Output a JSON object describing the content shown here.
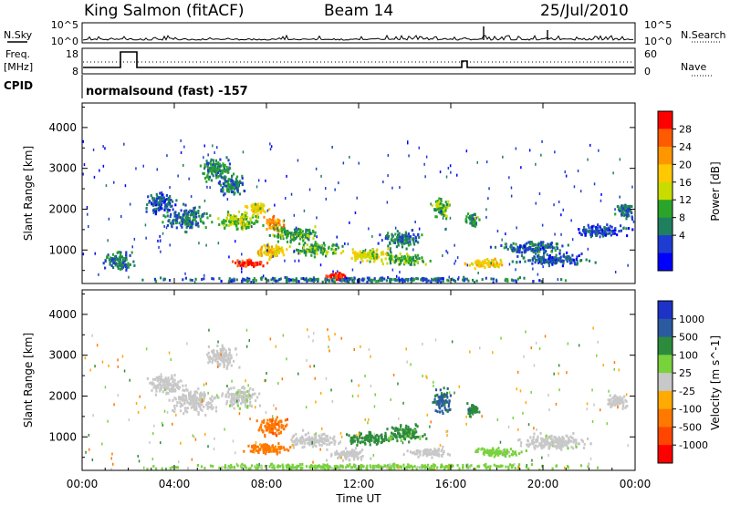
{
  "header": {
    "station": "King Salmon (fitACF)",
    "beam": "Beam 14",
    "date": "25/Jul/2010"
  },
  "top_panels": {
    "nsky_label": "N.Sky",
    "nsearch_label": "N.Search",
    "freq_label": "Freq.",
    "freq_unit": "[MHz]",
    "nave_label": "Nave",
    "cpid_label": "CPID",
    "cpid_text": "normalsound (fast) -157",
    "noise_ticks_left": [
      "10^5",
      "10^0"
    ],
    "noise_ticks_right": [
      "10^5",
      "10^0"
    ],
    "freq_ticks": [
      "18",
      "8"
    ],
    "nave_ticks": [
      "60",
      "0"
    ]
  },
  "power_colorbar": {
    "label": "Power [dB]",
    "ticks": [
      "28",
      "24",
      "20",
      "16",
      "12",
      "8",
      "4"
    ],
    "colors": [
      "#ff0000",
      "#ff5a00",
      "#ff9600",
      "#ffc800",
      "#c8dc00",
      "#2aa52a",
      "#1f8060",
      "#1e3cd2",
      "#0000ff"
    ]
  },
  "velocity_colorbar": {
    "label": "Velocity [m s^-1]",
    "ticks": [
      "1000",
      "500",
      "100",
      "25",
      "-25",
      "-100",
      "-500",
      "-1000"
    ],
    "colors": [
      "#1e32c8",
      "#2a5aa0",
      "#2d8c3c",
      "#78d23c",
      "#c8c8c8",
      "#ffaa00",
      "#ff7800",
      "#ff4600",
      "#ff0000"
    ]
  },
  "chart_data": [
    {
      "type": "heatmap",
      "name": "power",
      "ylabel": "Slant Range [km]",
      "yticks": [
        1000,
        2000,
        3000,
        4000
      ],
      "ylim": [
        180,
        4600
      ],
      "xlim": [
        0,
        24
      ],
      "clim": [
        0,
        30
      ],
      "blobs": [
        {
          "t": 1.6,
          "r": 750,
          "dt": 0.9,
          "dr": 300,
          "v": 8
        },
        {
          "t": 3.4,
          "r": 2200,
          "dt": 0.8,
          "dr": 350,
          "v": 6
        },
        {
          "t": 4.5,
          "r": 1800,
          "dt": 1.2,
          "dr": 400,
          "v": 8
        },
        {
          "t": 5.8,
          "r": 3000,
          "dt": 0.9,
          "dr": 350,
          "v": 9
        },
        {
          "t": 6.5,
          "r": 2600,
          "dt": 0.8,
          "dr": 300,
          "v": 8
        },
        {
          "t": 6.8,
          "r": 1750,
          "dt": 1.2,
          "dr": 300,
          "v": 14
        },
        {
          "t": 7.6,
          "r": 2050,
          "dt": 0.6,
          "dr": 200,
          "v": 17
        },
        {
          "t": 8.3,
          "r": 1650,
          "dt": 0.6,
          "dr": 250,
          "v": 22
        },
        {
          "t": 8.2,
          "r": 1000,
          "dt": 1.0,
          "dr": 220,
          "v": 18
        },
        {
          "t": 7.2,
          "r": 700,
          "dt": 1.0,
          "dr": 120,
          "v": 27
        },
        {
          "t": 9.2,
          "r": 1400,
          "dt": 1.4,
          "dr": 250,
          "v": 11
        },
        {
          "t": 10.2,
          "r": 1050,
          "dt": 1.4,
          "dr": 200,
          "v": 11
        },
        {
          "t": 11.0,
          "r": 380,
          "dt": 0.8,
          "dr": 120,
          "v": 28
        },
        {
          "t": 12.5,
          "r": 900,
          "dt": 1.5,
          "dr": 200,
          "v": 16
        },
        {
          "t": 14.0,
          "r": 800,
          "dt": 1.2,
          "dr": 200,
          "v": 12
        },
        {
          "t": 13.8,
          "r": 1300,
          "dt": 1.2,
          "dr": 250,
          "v": 8
        },
        {
          "t": 15.6,
          "r": 2050,
          "dt": 0.5,
          "dr": 350,
          "v": 12
        },
        {
          "t": 16.9,
          "r": 1750,
          "dt": 0.4,
          "dr": 200,
          "v": 10
        },
        {
          "t": 17.6,
          "r": 700,
          "dt": 1.2,
          "dr": 150,
          "v": 18
        },
        {
          "t": 19.5,
          "r": 1100,
          "dt": 2.0,
          "dr": 200,
          "v": 7
        },
        {
          "t": 20.5,
          "r": 800,
          "dt": 2.2,
          "dr": 200,
          "v": 6
        },
        {
          "t": 22.5,
          "r": 1500,
          "dt": 1.5,
          "dr": 200,
          "v": 6
        },
        {
          "t": 23.5,
          "r": 2000,
          "dt": 0.5,
          "dr": 300,
          "v": 7
        },
        {
          "t": 12.0,
          "r": 300,
          "dt": 12.0,
          "dr": 80,
          "v": 7
        }
      ]
    },
    {
      "type": "heatmap",
      "name": "velocity",
      "xlabel": "Time UT",
      "ylabel": "Slant Range [km]",
      "xticks": [
        "00:00",
        "04:00",
        "08:00",
        "12:00",
        "16:00",
        "20:00",
        "00:00"
      ],
      "yticks": [
        1000,
        2000,
        3000,
        4000
      ],
      "ylim": [
        180,
        4600
      ],
      "xlim": [
        0,
        24
      ],
      "clim": [
        -1000,
        1000
      ],
      "blobs": [
        {
          "t": 3.6,
          "r": 2300,
          "dt": 1.0,
          "dr": 350,
          "v": 0
        },
        {
          "t": 4.8,
          "r": 1900,
          "dt": 1.2,
          "dr": 400,
          "v": 0
        },
        {
          "t": 6.0,
          "r": 3000,
          "dt": 0.9,
          "dr": 350,
          "v": 0
        },
        {
          "t": 6.8,
          "r": 2000,
          "dt": 1.0,
          "dr": 350,
          "v": 10
        },
        {
          "t": 8.2,
          "r": 1300,
          "dt": 0.8,
          "dr": 300,
          "v": -400
        },
        {
          "t": 8.0,
          "r": 750,
          "dt": 1.3,
          "dr": 200,
          "v": -150
        },
        {
          "t": 10.0,
          "r": 950,
          "dt": 1.5,
          "dr": 250,
          "v": 0
        },
        {
          "t": 11.5,
          "r": 600,
          "dt": 1.2,
          "dr": 200,
          "v": 0
        },
        {
          "t": 12.5,
          "r": 1000,
          "dt": 1.5,
          "dr": 200,
          "v": 300
        },
        {
          "t": 14.0,
          "r": 1100,
          "dt": 1.2,
          "dr": 250,
          "v": 150
        },
        {
          "t": 15.0,
          "r": 650,
          "dt": 1.2,
          "dr": 150,
          "v": 0
        },
        {
          "t": 15.6,
          "r": 1900,
          "dt": 0.5,
          "dr": 400,
          "v": 600
        },
        {
          "t": 16.9,
          "r": 1700,
          "dt": 0.4,
          "dr": 200,
          "v": 400
        },
        {
          "t": 18.0,
          "r": 650,
          "dt": 1.5,
          "dr": 150,
          "v": 60
        },
        {
          "t": 20.5,
          "r": 900,
          "dt": 2.0,
          "dr": 250,
          "v": 5
        },
        {
          "t": 23.2,
          "r": 1900,
          "dt": 0.6,
          "dr": 250,
          "v": 0
        },
        {
          "t": 12.0,
          "r": 300,
          "dt": 12.0,
          "dr": 90,
          "v": 60
        }
      ]
    }
  ]
}
